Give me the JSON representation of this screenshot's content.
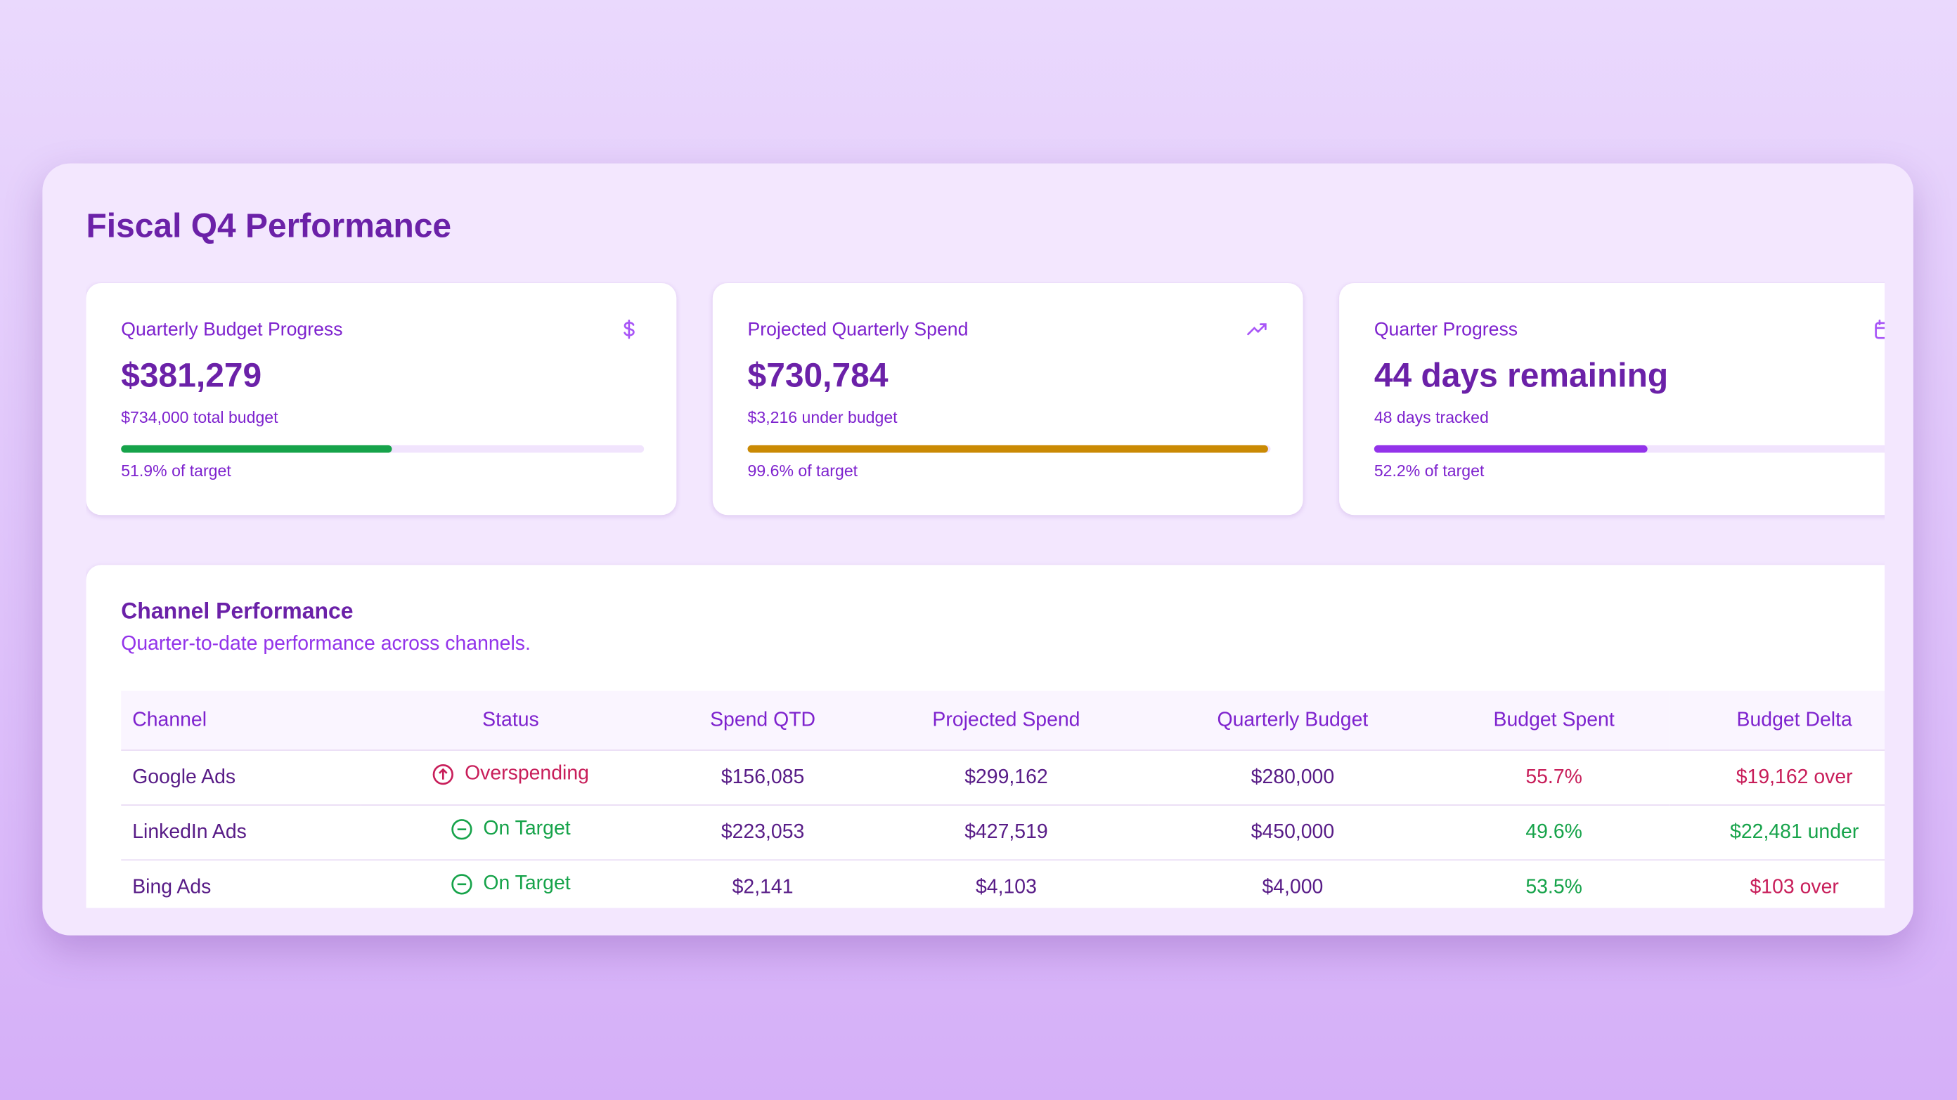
{
  "header": {
    "title": "Fiscal Q4 Performance"
  },
  "cards": [
    {
      "label": "Quarterly Budget Progress",
      "value": "$381,279",
      "sub": "$734,000 total budget",
      "progress": 51.9,
      "progress_label": "51.9% of target",
      "color": "#16a34a"
    },
    {
      "label": "Projected Quarterly Spend",
      "value": "$730,784",
      "sub": "$3,216 under budget",
      "progress": 99.6,
      "progress_label": "99.6% of target",
      "color": "#ca8a04"
    },
    {
      "label": "Quarter Progress",
      "value": "44 days remaining",
      "sub": "48 days tracked",
      "progress": 52.2,
      "progress_label": "52.2% of target",
      "color": "#9333ea"
    }
  ],
  "table": {
    "title": "Channel Performance",
    "subtitle": "Quarter-to-date performance across channels.",
    "columns": [
      "Channel",
      "Status",
      "Spend QTD",
      "Projected Spend",
      "Quarterly Budget",
      "Budget Spent",
      "Budget Delta"
    ],
    "rows": [
      [
        "Google Ads",
        "Overspending",
        "$156,085",
        "$299,162",
        "$280,000",
        "55.7%",
        "$19,162 over"
      ],
      [
        "LinkedIn Ads",
        "On Target",
        "$223,053",
        "$427,519",
        "$450,000",
        "49.6%",
        "$22,481 under"
      ],
      [
        "Bing Ads",
        "On Target",
        "$2,141",
        "$4,103",
        "$4,000",
        "53.5%",
        "$103 over"
      ]
    ],
    "row_colors": [
      "#c81e5a",
      "#16a34a",
      "#16a34a"
    ],
    "delta_colors": [
      "#c81e5a",
      "#16a34a",
      "#c81e5a"
    ]
  }
}
